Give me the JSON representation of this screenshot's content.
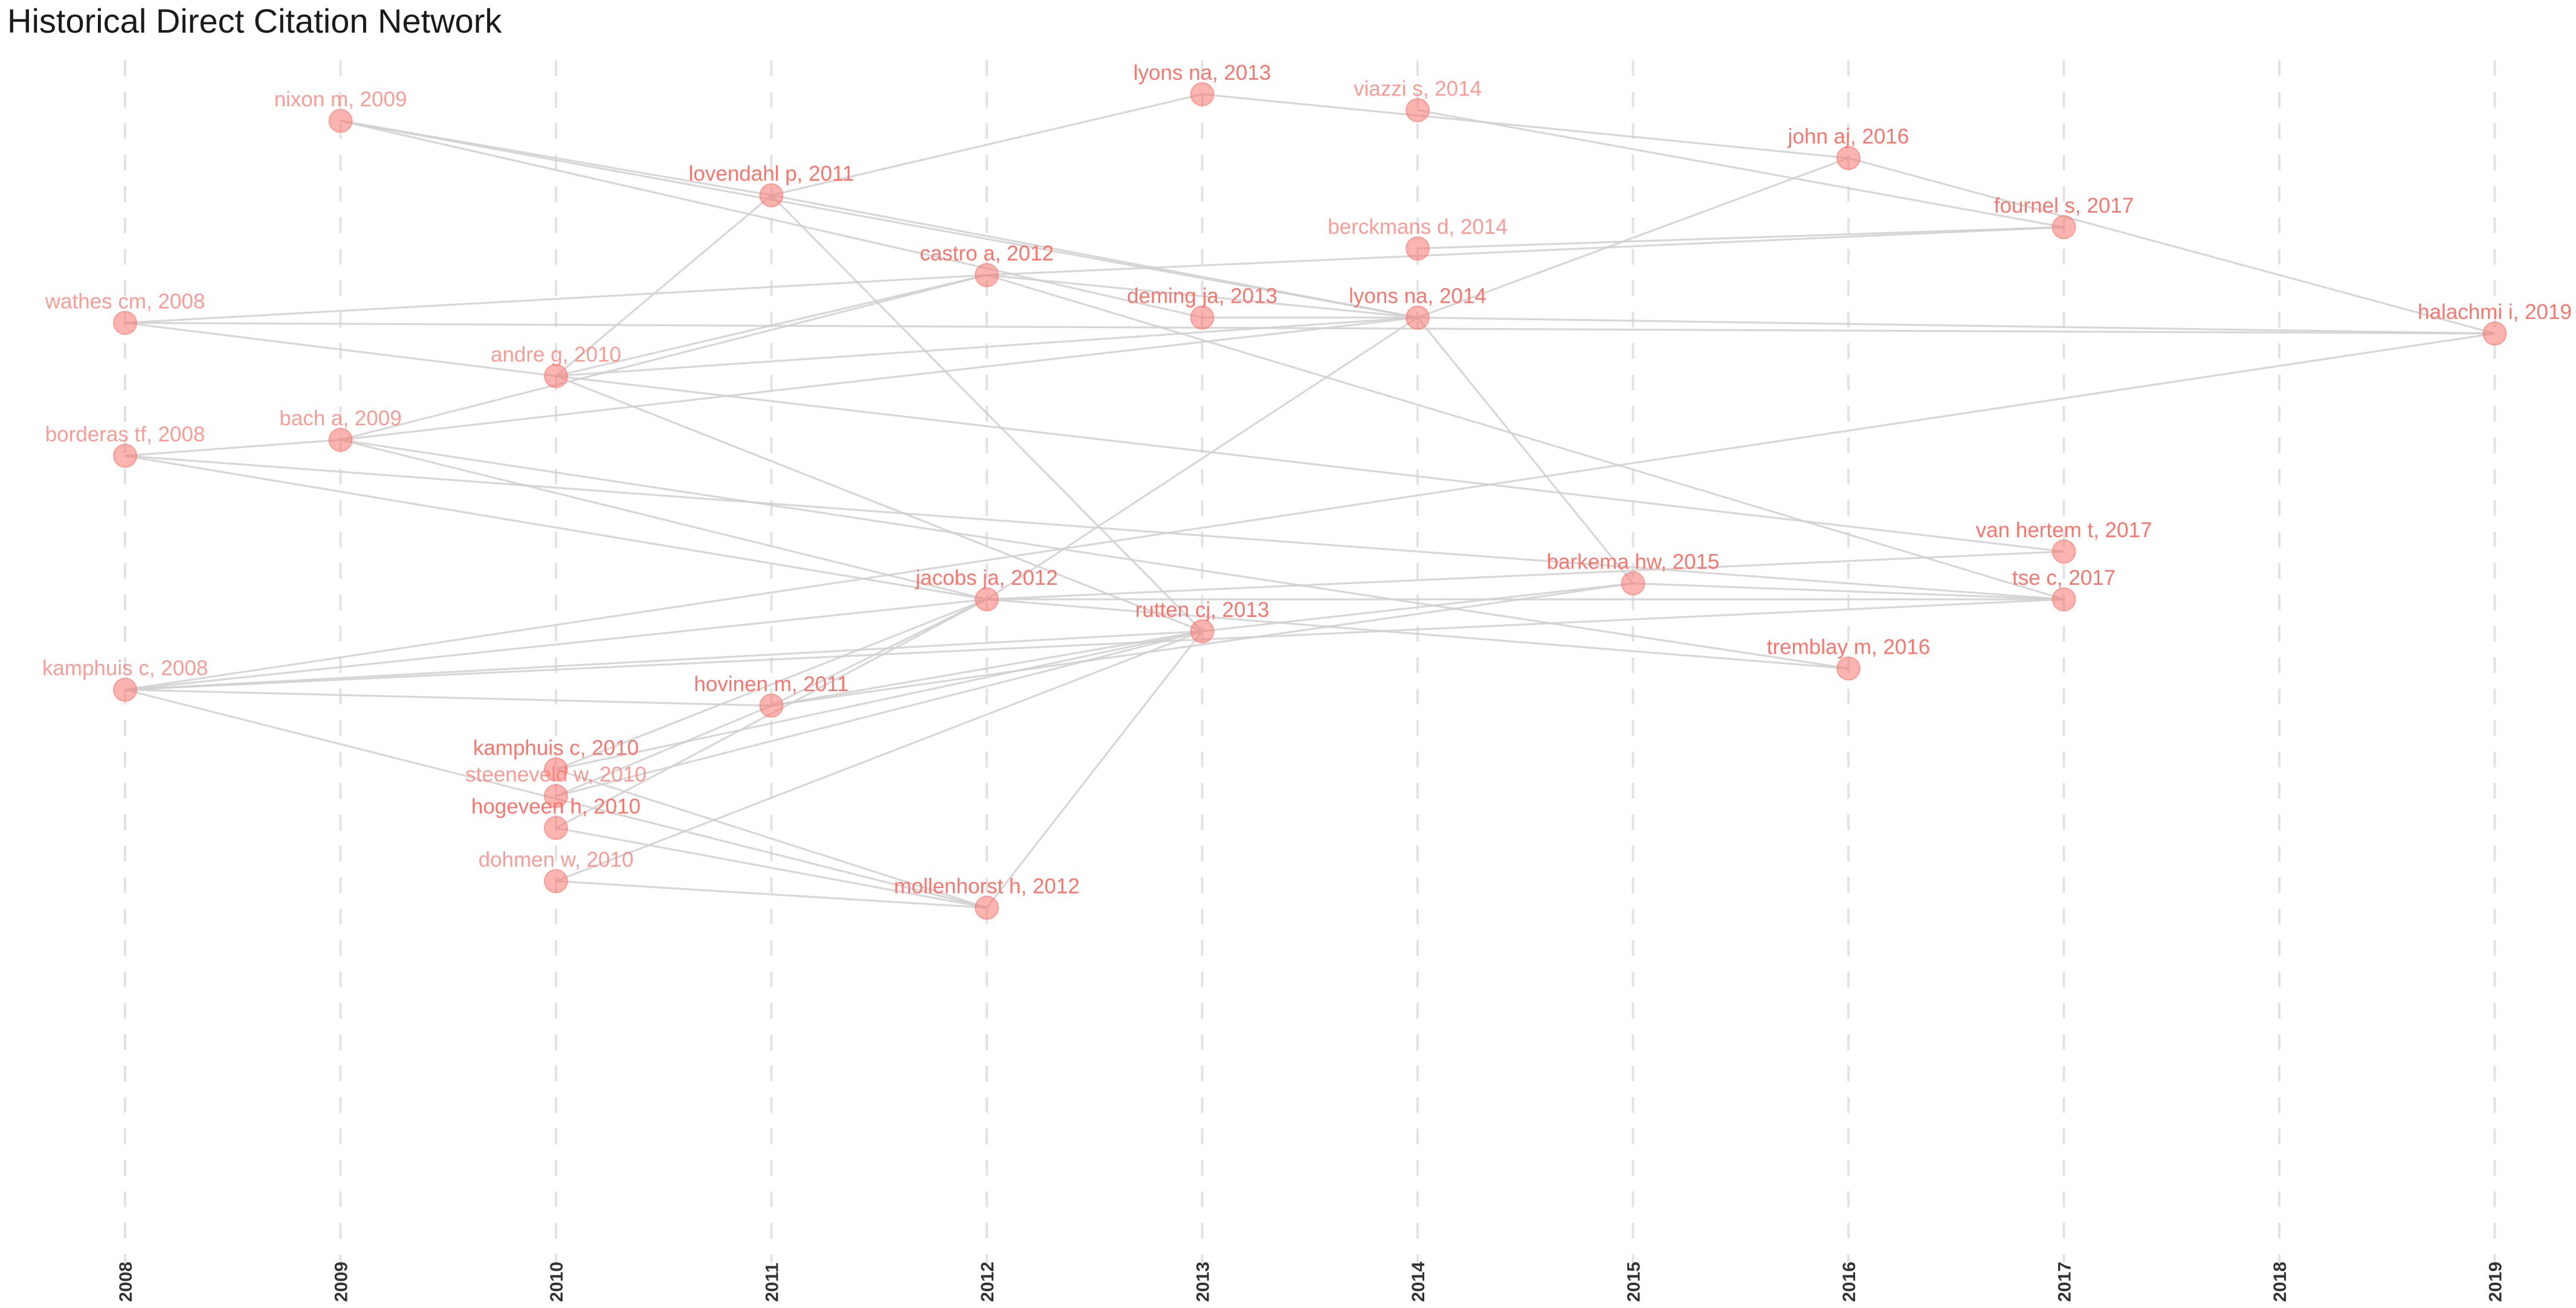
{
  "chart_data": {
    "type": "network",
    "title": "Historical Direct Citation Network",
    "x_axis": {
      "ticks": [
        "2008",
        "2009",
        "2010",
        "2011",
        "2012",
        "2013",
        "2014",
        "2015",
        "2016",
        "2017",
        "2018",
        "2019"
      ]
    },
    "colors": {
      "node": "#f8766d",
      "edge": "#d0d0d0",
      "grid": "#e3e3e3"
    },
    "nodes": [
      {
        "id": "wathes_2008",
        "label": "wathes cm, 2008",
        "year": 2008,
        "rank": 44,
        "emphasis": "light"
      },
      {
        "id": "borderas_2008",
        "label": "borderas tf, 2008",
        "year": 2008,
        "rank": 69,
        "emphasis": "light"
      },
      {
        "id": "kamphuis_2008",
        "label": "kamphuis c, 2008",
        "year": 2008,
        "rank": 113,
        "emphasis": "light"
      },
      {
        "id": "nixon_2009",
        "label": "nixon m, 2009",
        "year": 2009,
        "rank": 6,
        "emphasis": "light"
      },
      {
        "id": "bach_2009",
        "label": "bach a, 2009",
        "year": 2009,
        "rank": 66,
        "emphasis": "light"
      },
      {
        "id": "andre_2010",
        "label": "andre g, 2010",
        "year": 2010,
        "rank": 54,
        "emphasis": "light"
      },
      {
        "id": "kamphuis_2010",
        "label": "kamphuis c, 2010",
        "year": 2010,
        "rank": 128,
        "emphasis": "bold"
      },
      {
        "id": "steeneveld_2010",
        "label": "steeneveld w, 2010",
        "year": 2010,
        "rank": 133,
        "emphasis": "light"
      },
      {
        "id": "hogeveen_2010",
        "label": "hogeveen h, 2010",
        "year": 2010,
        "rank": 139,
        "emphasis": "bold"
      },
      {
        "id": "dohmen_2010",
        "label": "dohmen w, 2010",
        "year": 2010,
        "rank": 149,
        "emphasis": "light"
      },
      {
        "id": "lovendahl_2011",
        "label": "lovendahl p, 2011",
        "year": 2011,
        "rank": 20,
        "emphasis": "bold"
      },
      {
        "id": "hovinen_2011",
        "label": "hovinen m, 2011",
        "year": 2011,
        "rank": 116,
        "emphasis": "bold"
      },
      {
        "id": "castro_2012",
        "label": "castro a, 2012",
        "year": 2012,
        "rank": 35,
        "emphasis": "bold"
      },
      {
        "id": "jacobs_2012",
        "label": "jacobs ja, 2012",
        "year": 2012,
        "rank": 96,
        "emphasis": "bold"
      },
      {
        "id": "mollenhorst_2012",
        "label": "mollenhorst h, 2012",
        "year": 2012,
        "rank": 154,
        "emphasis": "bold"
      },
      {
        "id": "lyons_2013",
        "label": "lyons na, 2013",
        "year": 2013,
        "rank": 1,
        "emphasis": "bold"
      },
      {
        "id": "deming_2013",
        "label": "deming ja, 2013",
        "year": 2013,
        "rank": 43,
        "emphasis": "bold"
      },
      {
        "id": "rutten_2013",
        "label": "rutten cj, 2013",
        "year": 2013,
        "rank": 102,
        "emphasis": "bold"
      },
      {
        "id": "viazzi_2014",
        "label": "viazzi s, 2014",
        "year": 2014,
        "rank": 4,
        "emphasis": "light"
      },
      {
        "id": "berckmans_2014",
        "label": "berckmans d, 2014",
        "year": 2014,
        "rank": 30,
        "emphasis": "light"
      },
      {
        "id": "lyons_2014",
        "label": "lyons na, 2014",
        "year": 2014,
        "rank": 43,
        "emphasis": "bold"
      },
      {
        "id": "barkema_2015",
        "label": "barkema hw, 2015",
        "year": 2015,
        "rank": 93,
        "emphasis": "bold"
      },
      {
        "id": "john_2016",
        "label": "john aj, 2016",
        "year": 2016,
        "rank": 13,
        "emphasis": "bold"
      },
      {
        "id": "tremblay_2016",
        "label": "tremblay m, 2016",
        "year": 2016,
        "rank": 109,
        "emphasis": "bold"
      },
      {
        "id": "fournel_2017",
        "label": "fournel s, 2017",
        "year": 2017,
        "rank": 26,
        "emphasis": "bold"
      },
      {
        "id": "vanhertem_2017",
        "label": "van hertem t, 2017",
        "year": 2017,
        "rank": 87,
        "emphasis": "bold"
      },
      {
        "id": "tse_2017",
        "label": "tse c, 2017",
        "year": 2017,
        "rank": 96,
        "emphasis": "bold"
      },
      {
        "id": "halachmi_2019",
        "label": "halachmi i, 2019",
        "year": 2019,
        "rank": 46,
        "emphasis": "bold"
      }
    ],
    "edges": [
      [
        "nixon_2009",
        "lovendahl_2011"
      ],
      [
        "nixon_2009",
        "lyons_2014"
      ],
      [
        "nixon_2009",
        "deming_2013"
      ],
      [
        "lovendahl_2011",
        "lyons_2013"
      ],
      [
        "lovendahl_2011",
        "andre_2010"
      ],
      [
        "lovendahl_2011",
        "rutten_2013"
      ],
      [
        "lovendahl_2011",
        "lyons_2014"
      ],
      [
        "lyons_2013",
        "john_2016"
      ],
      [
        "viazzi_2014",
        "fournel_2017"
      ],
      [
        "john_2016",
        "halachmi_2019"
      ],
      [
        "fournel_2017",
        "berckmans_2014"
      ],
      [
        "fournel_2017",
        "castro_2012"
      ],
      [
        "wathes_2008",
        "castro_2012"
      ],
      [
        "wathes_2008",
        "halachmi_2019"
      ],
      [
        "wathes_2008",
        "andre_2010"
      ],
      [
        "castro_2012",
        "lyons_2014"
      ],
      [
        "castro_2012",
        "andre_2010"
      ],
      [
        "castro_2012",
        "bach_2009"
      ],
      [
        "castro_2012",
        "tse_2017"
      ],
      [
        "deming_2013",
        "lyons_2014"
      ],
      [
        "lyons_2014",
        "john_2016"
      ],
      [
        "lyons_2014",
        "jacobs_2012"
      ],
      [
        "lyons_2014",
        "barkema_2015"
      ],
      [
        "lyons_2014",
        "andre_2010"
      ],
      [
        "lyons_2014",
        "bach_2009"
      ],
      [
        "andre_2010",
        "vanhertem_2017"
      ],
      [
        "andre_2010",
        "rutten_2013"
      ],
      [
        "bach_2009",
        "borderas_2008"
      ],
      [
        "bach_2009",
        "jacobs_2012"
      ],
      [
        "bach_2009",
        "tremblay_2016"
      ],
      [
        "borderas_2008",
        "jacobs_2012"
      ],
      [
        "borderas_2008",
        "tse_2017"
      ],
      [
        "jacobs_2012",
        "vanhertem_2017"
      ],
      [
        "jacobs_2012",
        "tse_2017"
      ],
      [
        "jacobs_2012",
        "kamphuis_2008"
      ],
      [
        "jacobs_2012",
        "hovinen_2011"
      ],
      [
        "jacobs_2012",
        "kamphuis_2010"
      ],
      [
        "jacobs_2012",
        "hogeveen_2010"
      ],
      [
        "jacobs_2012",
        "tremblay_2016"
      ],
      [
        "rutten_2013",
        "barkema_2015"
      ],
      [
        "rutten_2013",
        "hovinen_2011"
      ],
      [
        "rutten_2013",
        "kamphuis_2010"
      ],
      [
        "rutten_2013",
        "steeneveld_2010"
      ],
      [
        "rutten_2013",
        "mollenhorst_2012"
      ],
      [
        "rutten_2013",
        "dohmen_2010"
      ],
      [
        "rutten_2013",
        "kamphuis_2008"
      ],
      [
        "kamphuis_2008",
        "halachmi_2019"
      ],
      [
        "kamphuis_2008",
        "hovinen_2011"
      ],
      [
        "kamphuis_2008",
        "mollenhorst_2012"
      ],
      [
        "kamphuis_2008",
        "tse_2017"
      ],
      [
        "hovinen_2011",
        "barkema_2015"
      ],
      [
        "hovinen_2011",
        "steeneveld_2010"
      ],
      [
        "kamphuis_2010",
        "mollenhorst_2012"
      ],
      [
        "hogeveen_2010",
        "mollenhorst_2012"
      ],
      [
        "dohmen_2010",
        "mollenhorst_2012"
      ],
      [
        "halachmi_2019",
        "lyons_2014"
      ],
      [
        "barkema_2015",
        "tse_2017"
      ]
    ]
  }
}
